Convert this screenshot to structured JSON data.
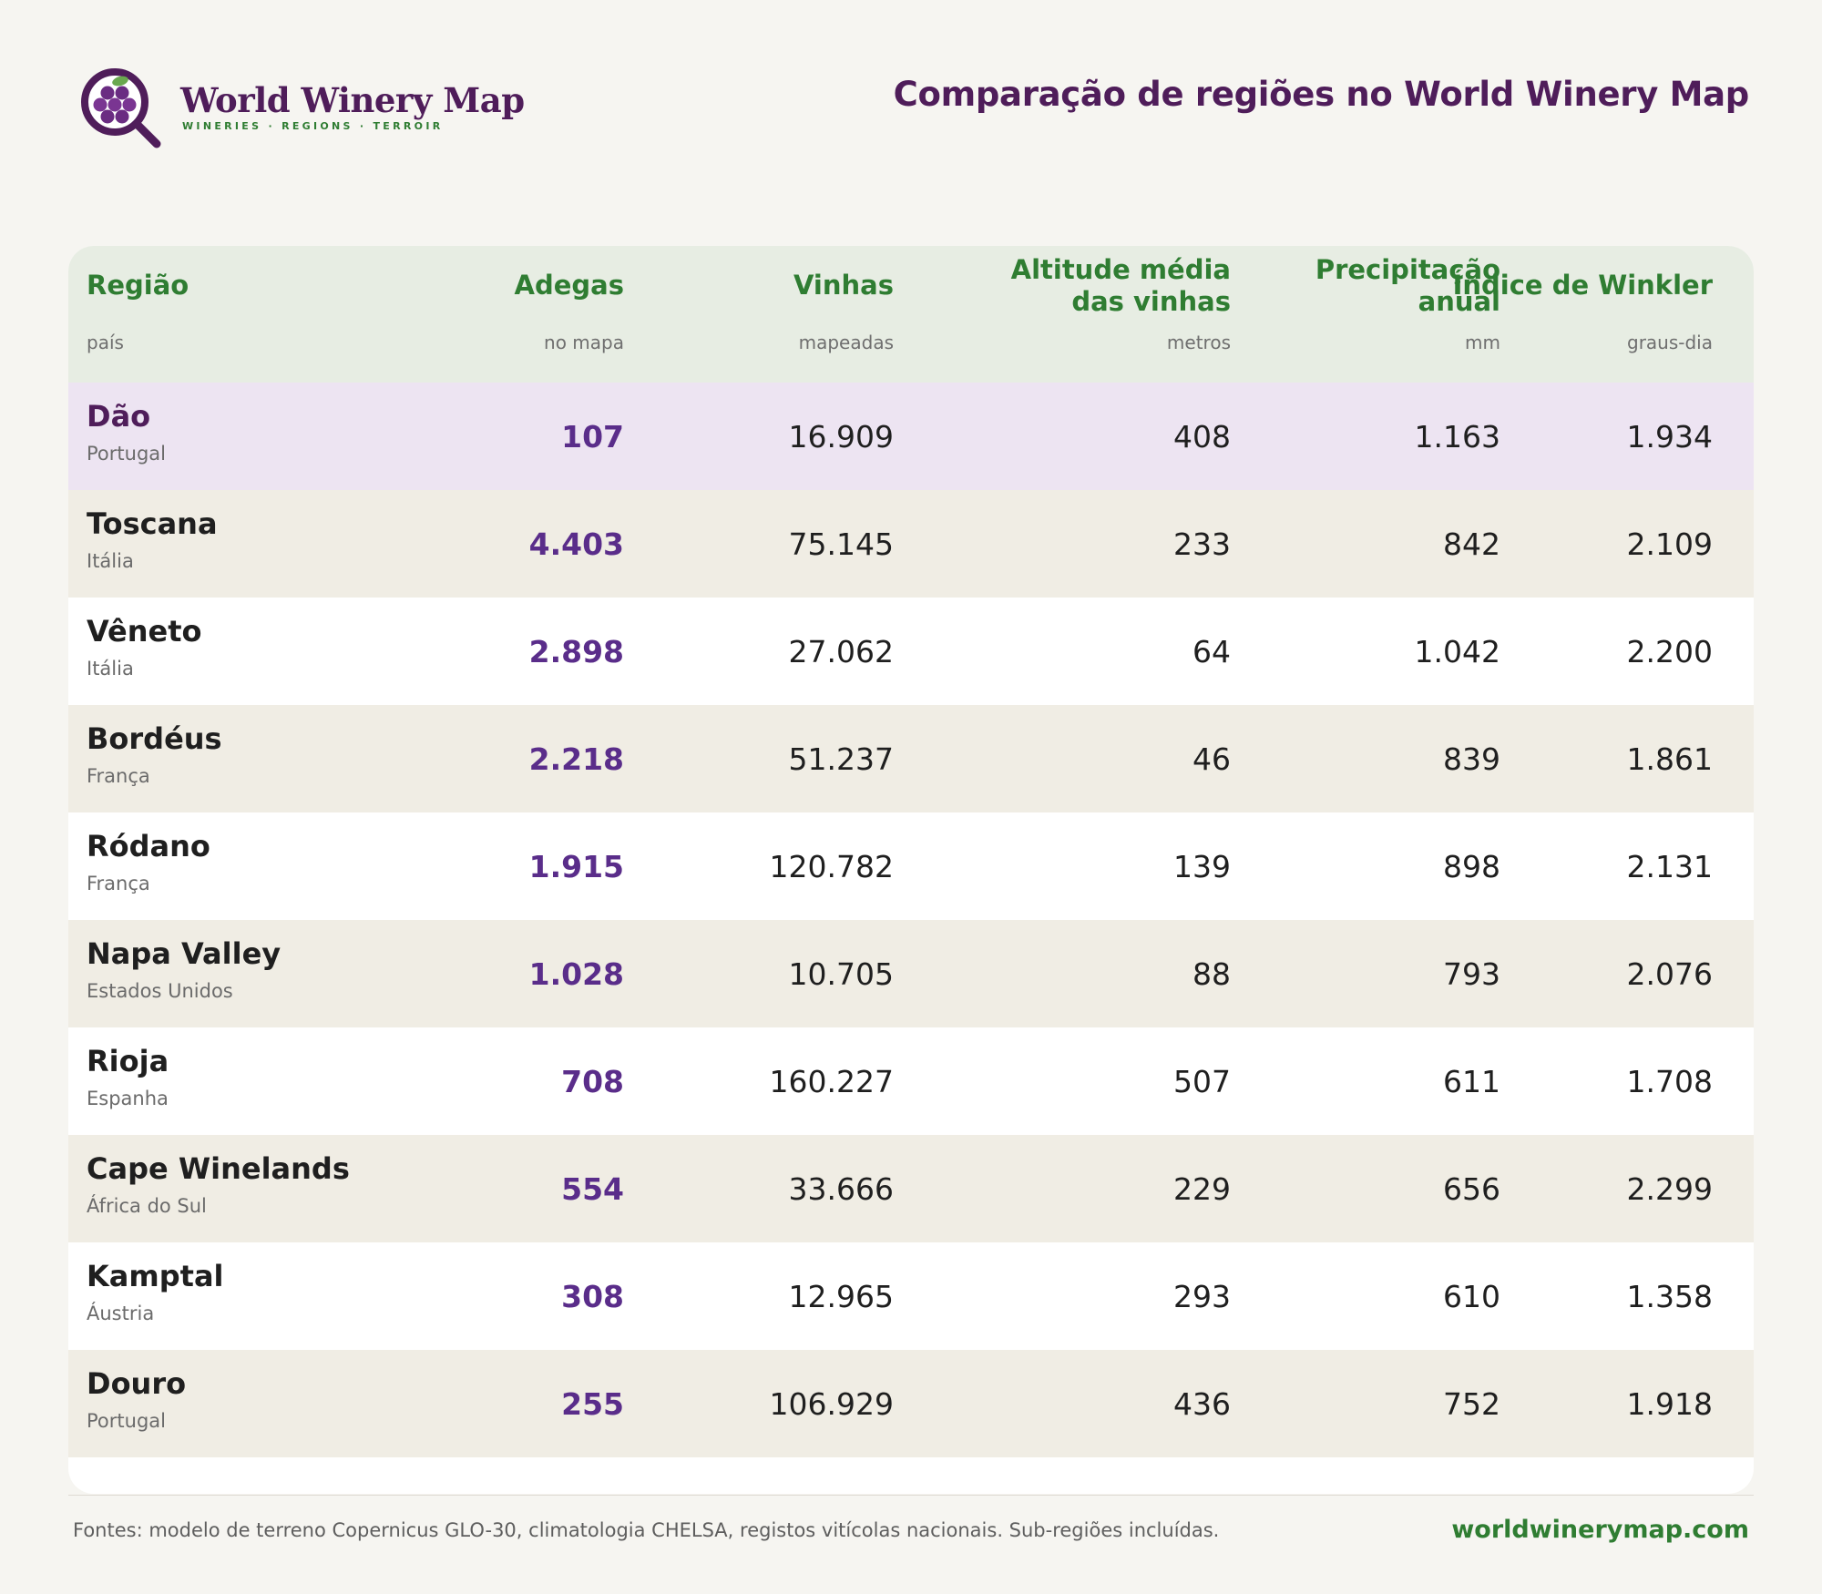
{
  "brand": {
    "name": "World Winery Map",
    "tagline": "WINERIES · REGIONS · TERROIR"
  },
  "page_title": "Comparação de regiões no World Winery Map",
  "colors": {
    "brand_purple": "#4f1d5a",
    "accent_green": "#2f7d32",
    "winery_purple": "#5a2d8a",
    "header_bg": "#e7ede3",
    "highlight_row_bg": "#ede4f2",
    "alt_row_bg": "#f0ede4"
  },
  "table": {
    "columns": [
      {
        "label": "Região",
        "sub": "país"
      },
      {
        "label": "Adegas",
        "sub": "no mapa"
      },
      {
        "label": "Vinhas",
        "sub": "mapeadas"
      },
      {
        "label_line1": "Altitude média",
        "label_line2": "das vinhas",
        "sub": "metros"
      },
      {
        "label_line1": "Precipitação",
        "label_line2": "anual",
        "sub": "mm"
      },
      {
        "label": "Índice de Winkler",
        "sub": "graus-dia"
      }
    ],
    "rows": [
      {
        "region": "Dão",
        "country": "Portugal",
        "wineries": "107",
        "vineyards": "16.909",
        "altitude": "408",
        "precip": "1.163",
        "winkler": "1.934"
      },
      {
        "region": "Toscana",
        "country": "Itália",
        "wineries": "4.403",
        "vineyards": "75.145",
        "altitude": "233",
        "precip": "842",
        "winkler": "2.109"
      },
      {
        "region": "Vêneto",
        "country": "Itália",
        "wineries": "2.898",
        "vineyards": "27.062",
        "altitude": "64",
        "precip": "1.042",
        "winkler": "2.200"
      },
      {
        "region": "Bordéus",
        "country": "França",
        "wineries": "2.218",
        "vineyards": "51.237",
        "altitude": "46",
        "precip": "839",
        "winkler": "1.861"
      },
      {
        "region": "Ródano",
        "country": "França",
        "wineries": "1.915",
        "vineyards": "120.782",
        "altitude": "139",
        "precip": "898",
        "winkler": "2.131"
      },
      {
        "region": "Napa Valley",
        "country": "Estados Unidos",
        "wineries": "1.028",
        "vineyards": "10.705",
        "altitude": "88",
        "precip": "793",
        "winkler": "2.076"
      },
      {
        "region": "Rioja",
        "country": "Espanha",
        "wineries": "708",
        "vineyards": "160.227",
        "altitude": "507",
        "precip": "611",
        "winkler": "1.708"
      },
      {
        "region": "Cape Winelands",
        "country": "África do Sul",
        "wineries": "554",
        "vineyards": "33.666",
        "altitude": "229",
        "precip": "656",
        "winkler": "2.299"
      },
      {
        "region": "Kamptal",
        "country": "Áustria",
        "wineries": "308",
        "vineyards": "12.965",
        "altitude": "293",
        "precip": "610",
        "winkler": "1.358"
      },
      {
        "region": "Douro",
        "country": "Portugal",
        "wineries": "255",
        "vineyards": "106.929",
        "altitude": "436",
        "precip": "752",
        "winkler": "1.918"
      }
    ]
  },
  "footer": {
    "sources": "Fontes: modelo de terreno Copernicus GLO-30, climatologia CHELSA, registos vitícolas nacionais. Sub-regiões incluídas.",
    "site": "worldwinerymap.com"
  }
}
